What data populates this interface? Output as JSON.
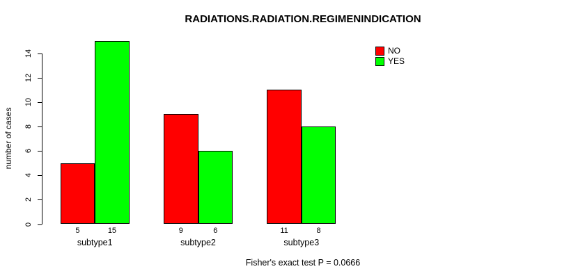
{
  "title": "RADIATIONS.RADIATION.REGIMENINDICATION",
  "footer": "Fisher's exact test P = 0.0666",
  "y_axis_label": "number of cases",
  "legend": [
    {
      "label": "NO",
      "color": "#ff0000"
    },
    {
      "label": "YES",
      "color": "#00ff00"
    }
  ],
  "chart_data": {
    "type": "bar",
    "title": "RADIATIONS.RADIATION.REGIMENINDICATION",
    "xlabel": "",
    "ylabel": "number of cases",
    "ylim": [
      0,
      15
    ],
    "yticks": [
      0,
      2,
      4,
      6,
      8,
      10,
      12,
      14
    ],
    "categories": [
      "subtype1",
      "subtype2",
      "subtype3"
    ],
    "series": [
      {
        "name": "NO",
        "color": "#ff0000",
        "values": [
          5,
          9,
          11
        ]
      },
      {
        "name": "YES",
        "color": "#00ff00",
        "values": [
          15,
          6,
          8
        ]
      }
    ],
    "bar_value_labels": [
      [
        5,
        15
      ],
      [
        9,
        6
      ],
      [
        11,
        8
      ]
    ],
    "annotation": "Fisher's exact test P = 0.0666",
    "legend_position": "top-right",
    "grid": false,
    "grouped": true
  }
}
